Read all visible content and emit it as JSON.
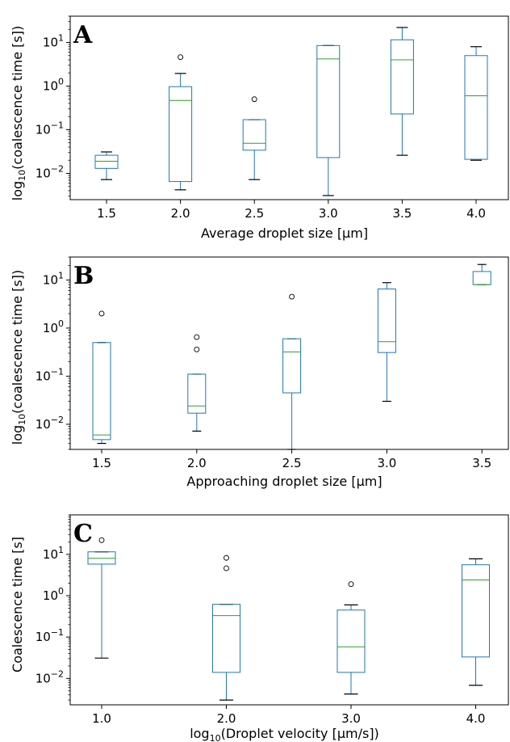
{
  "colors": {
    "box": "#1f77b4",
    "median": "#2ca02c",
    "whisker": "#000000",
    "flier": "#000000",
    "axis": "#000000"
  },
  "chart_data": [
    {
      "type": "box",
      "panel_label": "A",
      "xlabel": "Average droplet size [μm]",
      "ylabel_parts": [
        "log",
        "10",
        "(coalescence time [s])"
      ],
      "yscale": "log",
      "ylim": [
        0.0025,
        40
      ],
      "ytick_values": [
        0.01,
        0.1,
        1,
        10
      ],
      "ytick_labels": [
        [
          "10",
          "−2"
        ],
        [
          "10",
          "−1"
        ],
        [
          "10",
          "0"
        ],
        [
          "10",
          "1"
        ]
      ],
      "categories": [
        "1.5",
        "2.0",
        "2.5",
        "3.0",
        "3.5",
        "4.0"
      ],
      "boxes": [
        {
          "whislo": 0.0072,
          "q1": 0.013,
          "med": 0.019,
          "q3": 0.026,
          "whishi": 0.031,
          "fliers": []
        },
        {
          "whislo": 0.0042,
          "q1": 0.0065,
          "med": 0.47,
          "q3": 0.97,
          "whishi": 1.95,
          "fliers": [
            4.6
          ]
        },
        {
          "whislo": 0.0072,
          "q1": 0.034,
          "med": 0.049,
          "q3": 0.17,
          "whishi": 0.17,
          "fliers": [
            0.5
          ]
        },
        {
          "whislo": 0.0031,
          "q1": 0.023,
          "med": 4.2,
          "q3": 8.5,
          "whishi": 8.5,
          "fliers": []
        },
        {
          "whislo": 0.026,
          "q1": 0.23,
          "med": 4.0,
          "q3": 11.5,
          "whishi": 22,
          "fliers": []
        },
        {
          "whislo": 0.02,
          "q1": 0.021,
          "med": 0.6,
          "q3": 5.0,
          "whishi": 8.0,
          "fliers": []
        }
      ]
    },
    {
      "type": "box",
      "panel_label": "B",
      "xlabel": "Approaching droplet size [μm]",
      "ylabel_parts": [
        "log",
        "10",
        "(coalescence time [s])"
      ],
      "yscale": "log",
      "ylim": [
        0.003,
        30
      ],
      "ytick_values": [
        0.01,
        0.1,
        1,
        10
      ],
      "ytick_labels": [
        [
          "10",
          "−2"
        ],
        [
          "10",
          "−1"
        ],
        [
          "10",
          "0"
        ],
        [
          "10",
          "1"
        ]
      ],
      "categories": [
        "1.5",
        "2.0",
        "2.5",
        "3.0",
        "3.5"
      ],
      "boxes": [
        {
          "whislo": 0.004,
          "q1": 0.0048,
          "med": 0.006,
          "q3": 0.5,
          "whishi": 0.5,
          "fliers": [
            2.0
          ]
        },
        {
          "whislo": 0.0072,
          "q1": 0.017,
          "med": 0.024,
          "q3": 0.11,
          "whishi": 0.11,
          "fliers": [
            0.36,
            0.65
          ]
        },
        {
          "whislo": 0.003,
          "q1": 0.045,
          "med": 0.32,
          "q3": 0.6,
          "whishi": 0.6,
          "fliers": [
            4.5
          ]
        },
        {
          "whislo": 0.03,
          "q1": 0.31,
          "med": 0.52,
          "q3": 6.5,
          "whishi": 8.8,
          "fliers": []
        },
        {
          "whislo": 8.0,
          "q1": 8.0,
          "med": 8.0,
          "q3": 15,
          "whishi": 21,
          "fliers": []
        }
      ]
    },
    {
      "type": "box",
      "panel_label": "C",
      "xlabel_parts": [
        "log",
        "10",
        "(Droplet velocity [μm/s])"
      ],
      "ylabel": "Coalescence time [s]",
      "yscale": "log",
      "ylim": [
        0.0023,
        90
      ],
      "ytick_values": [
        0.01,
        0.1,
        1,
        10
      ],
      "ytick_labels": [
        [
          "10",
          "−2"
        ],
        [
          "10",
          "−1"
        ],
        [
          "10",
          "0"
        ],
        [
          "10",
          "1"
        ]
      ],
      "categories": [
        "1.0",
        "2.0",
        "3.0",
        "4.0"
      ],
      "boxes": [
        {
          "whislo": 0.031,
          "q1": 5.8,
          "med": 8.0,
          "q3": 11.5,
          "whishi": 11.5,
          "fliers": [
            22
          ]
        },
        {
          "whislo": 0.003,
          "q1": 0.014,
          "med": 0.33,
          "q3": 0.62,
          "whishi": 0.62,
          "fliers": [
            4.6,
            8.2
          ]
        },
        {
          "whislo": 0.0042,
          "q1": 0.014,
          "med": 0.058,
          "q3": 0.45,
          "whishi": 0.6,
          "fliers": [
            1.9
          ]
        },
        {
          "whislo": 0.0068,
          "q1": 0.033,
          "med": 2.4,
          "q3": 5.6,
          "whishi": 7.8,
          "fliers": []
        }
      ]
    }
  ]
}
